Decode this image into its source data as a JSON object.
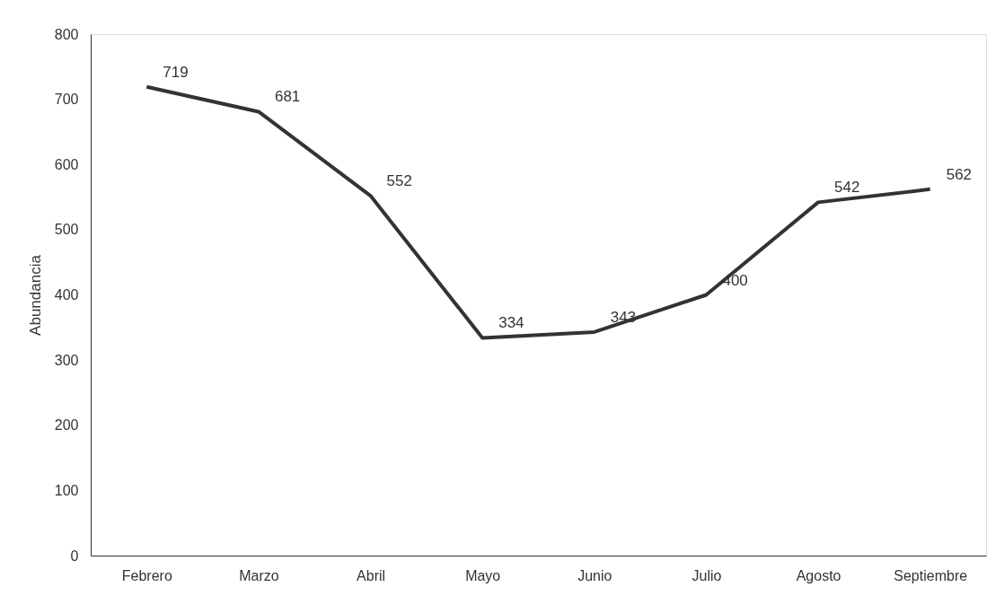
{
  "chart_data": {
    "type": "line",
    "ylabel": "Abundancia",
    "categories": [
      "Febrero",
      "Marzo",
      "Abril",
      "Mayo",
      "Junio",
      "Julio",
      "Agosto",
      "Septiembre"
    ],
    "series": [
      {
        "color": "#333333",
        "values": [
          719,
          681,
          552,
          334,
          343,
          400,
          542,
          562
        ]
      }
    ],
    "ylim": [
      0,
      800
    ],
    "yticks": [
      0,
      100,
      200,
      300,
      400,
      500,
      600,
      700,
      800
    ],
    "data_labels": true,
    "grid": false,
    "marker": "none",
    "line_style": "solid"
  }
}
